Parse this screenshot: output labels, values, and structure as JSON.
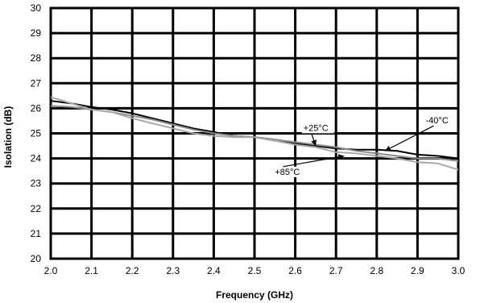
{
  "chart_data": {
    "type": "line",
    "xlabel": "Frequency (GHz)",
    "ylabel": "Isolation (dB)",
    "xlim": [
      2.0,
      3.0
    ],
    "ylim": [
      20,
      30
    ],
    "x_ticks": [
      "2.0",
      "2.1",
      "2.2",
      "2.3",
      "2.4",
      "2.5",
      "2.6",
      "2.7",
      "2.8",
      "2.9",
      "3.0"
    ],
    "y_ticks": [
      "20",
      "21",
      "22",
      "23",
      "24",
      "25",
      "26",
      "27",
      "28",
      "29",
      "30"
    ],
    "grid": true,
    "series": [
      {
        "name": "+25°C",
        "color": "#000000",
        "x": [
          2.0,
          2.05,
          2.1,
          2.15,
          2.2,
          2.25,
          2.3,
          2.35,
          2.4,
          2.45,
          2.5,
          2.55,
          2.6,
          2.65,
          2.7,
          2.75,
          2.8,
          2.85,
          2.9,
          2.95,
          3.0
        ],
        "y": [
          26.3,
          26.2,
          26.05,
          25.95,
          25.8,
          25.6,
          25.4,
          25.2,
          25.05,
          24.9,
          24.85,
          24.75,
          24.6,
          24.5,
          24.4,
          24.35,
          24.35,
          24.3,
          24.15,
          24.1,
          24.0
        ]
      },
      {
        "name": "-40°C",
        "color": "#8c8c8c",
        "x": [
          2.0,
          2.05,
          2.1,
          2.15,
          2.2,
          2.25,
          2.3,
          2.35,
          2.4,
          2.45,
          2.5,
          2.55,
          2.6,
          2.65,
          2.7,
          2.75,
          2.8,
          2.85,
          2.9,
          2.95,
          3.0
        ],
        "y": [
          26.1,
          26.05,
          25.95,
          25.85,
          25.7,
          25.55,
          25.35,
          25.15,
          25.0,
          24.9,
          24.85,
          24.75,
          24.65,
          24.55,
          24.45,
          24.3,
          24.2,
          24.1,
          24.0,
          24.0,
          23.9
        ]
      },
      {
        "name": "+85°C",
        "color": "#a8a8a8",
        "x": [
          2.0,
          2.05,
          2.1,
          2.15,
          2.2,
          2.25,
          2.3,
          2.35,
          2.4,
          2.45,
          2.5,
          2.55,
          2.6,
          2.65,
          2.7,
          2.75,
          2.8,
          2.85,
          2.9,
          2.95,
          3.0
        ],
        "y": [
          26.45,
          26.2,
          25.95,
          25.85,
          25.6,
          25.4,
          25.2,
          25.0,
          24.9,
          24.85,
          24.85,
          24.7,
          24.55,
          24.45,
          24.25,
          24.2,
          24.1,
          24.0,
          23.85,
          23.8,
          23.55
        ]
      }
    ],
    "annotations": [
      {
        "text": "+25°C",
        "x": 2.62,
        "y": 25.1,
        "arrow_to": {
          "x": 2.65,
          "y": 24.5
        }
      },
      {
        "text": "-40°C",
        "x": 2.92,
        "y": 25.4,
        "arrow_to": {
          "x": 2.82,
          "y": 24.3
        }
      },
      {
        "text": "+85°C",
        "x": 2.55,
        "y": 23.35,
        "arrow_to": {
          "x": 2.72,
          "y": 24.1
        }
      }
    ]
  }
}
